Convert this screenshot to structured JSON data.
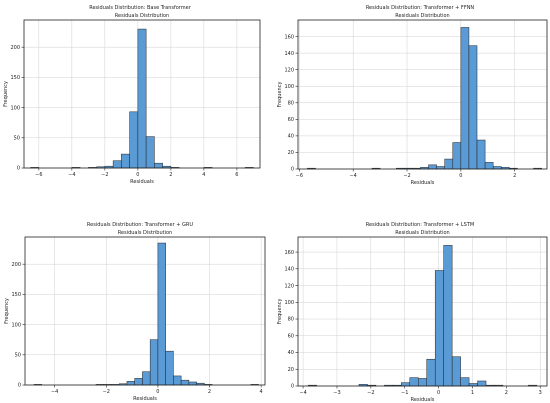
{
  "chart_data": [
    {
      "type": "bar",
      "suptitle": "Residuals Distribution: Base Transformer",
      "title": "Residuals Distribution",
      "xlabel": "Residuals",
      "ylabel": "Frequency",
      "xlim": [
        -6.9,
        7.4
      ],
      "ylim": [
        0,
        245
      ],
      "xticks": [
        -6,
        -4,
        -2,
        0,
        2,
        4,
        6
      ],
      "yticks": [
        0,
        50,
        100,
        150,
        200
      ],
      "grid": true,
      "color": "#5b9bd5",
      "bin_edges": [
        -6.5,
        -6.0,
        -5.5,
        -5.0,
        -4.5,
        -4.0,
        -3.5,
        -3.0,
        -2.5,
        -2.0,
        -1.5,
        -1.0,
        -0.5,
        0.0,
        0.5,
        1.0,
        1.5,
        2.0,
        2.5,
        3.0,
        3.5,
        4.0,
        4.5,
        5.0,
        5.5,
        6.0,
        6.5,
        7.0
      ],
      "counts": [
        1,
        0,
        0,
        0,
        0,
        1,
        0,
        1,
        2,
        3,
        12,
        23,
        93,
        230,
        52,
        8,
        3,
        1,
        0,
        0,
        0,
        1,
        0,
        0,
        0,
        0,
        1
      ]
    },
    {
      "type": "bar",
      "suptitle": "Residuals Distribution: Transformer + FFNN",
      "title": "Residuals Distribution",
      "xlabel": "Residuals",
      "ylabel": "Frequency",
      "xlim": [
        -6.05,
        3.2
      ],
      "ylim": [
        0,
        180
      ],
      "xticks": [
        -6,
        -4,
        -2,
        0,
        2
      ],
      "yticks": [
        0,
        20,
        40,
        60,
        80,
        100,
        120,
        140,
        160
      ],
      "grid": true,
      "color": "#5b9bd5",
      "bin_edges": [
        -5.7,
        -5.4,
        -5.1,
        -4.8,
        -4.5,
        -4.2,
        -3.9,
        -3.6,
        -3.3,
        -3.0,
        -2.7,
        -2.4,
        -2.1,
        -1.8,
        -1.5,
        -1.2,
        -0.9,
        -0.6,
        -0.3,
        0.0,
        0.3,
        0.6,
        0.9,
        1.2,
        1.5,
        1.8,
        2.1,
        2.4,
        2.7,
        3.0
      ],
      "counts": [
        1,
        0,
        0,
        0,
        0,
        0,
        0,
        0,
        1,
        0,
        0,
        1,
        1,
        1,
        2,
        5,
        3,
        12,
        32,
        171,
        149,
        35,
        8,
        3,
        2,
        1,
        0,
        0,
        1
      ]
    },
    {
      "type": "bar",
      "suptitle": "Residuals Distribution: Transformer + GRU",
      "title": "Residuals Distribution",
      "xlabel": "Residuals",
      "ylabel": "Frequency",
      "xlim": [
        -5.15,
        4.15
      ],
      "ylim": [
        0,
        245
      ],
      "xticks": [
        -4,
        -2,
        0,
        2,
        4
      ],
      "yticks": [
        0,
        50,
        100,
        150,
        200
      ],
      "grid": true,
      "color": "#5b9bd5",
      "bin_edges": [
        -4.8,
        -4.5,
        -4.2,
        -3.9,
        -3.6,
        -3.3,
        -3.0,
        -2.7,
        -2.4,
        -2.1,
        -1.8,
        -1.5,
        -1.2,
        -0.9,
        -0.6,
        -0.3,
        0.0,
        0.3,
        0.6,
        0.9,
        1.2,
        1.5,
        1.8,
        2.1,
        2.4,
        2.7,
        3.0,
        3.3,
        3.6,
        3.9
      ],
      "counts": [
        1,
        0,
        0,
        0,
        0,
        0,
        0,
        0,
        1,
        1,
        1,
        2,
        6,
        11,
        22,
        75,
        235,
        56,
        15,
        8,
        5,
        3,
        1,
        0,
        0,
        0,
        0,
        0,
        1
      ]
    },
    {
      "type": "bar",
      "suptitle": "Residuals Distribution: Transformer + LSTM",
      "title": "Residuals Distribution",
      "xlabel": "Residuals",
      "ylabel": "Frequency",
      "xlim": [
        -4.15,
        3.2
      ],
      "ylim": [
        0,
        178
      ],
      "xticks": [
        -4,
        -3,
        -2,
        -1,
        0,
        1,
        2,
        3
      ],
      "yticks": [
        0,
        20,
        40,
        60,
        80,
        100,
        120,
        140,
        160
      ],
      "grid": true,
      "color": "#5b9bd5",
      "bin_edges": [
        -3.85,
        -3.6,
        -3.35,
        -3.1,
        -2.85,
        -2.6,
        -2.35,
        -2.1,
        -1.85,
        -1.6,
        -1.35,
        -1.1,
        -0.85,
        -0.6,
        -0.35,
        -0.1,
        0.15,
        0.4,
        0.65,
        0.9,
        1.15,
        1.4,
        1.65,
        1.9,
        2.15,
        2.4,
        2.65,
        2.9
      ],
      "counts": [
        1,
        0,
        0,
        0,
        0,
        0,
        2,
        1,
        0,
        1,
        1,
        4,
        10,
        9,
        32,
        138,
        168,
        35,
        10,
        3,
        6,
        1,
        1,
        0,
        0,
        0,
        1
      ]
    }
  ]
}
